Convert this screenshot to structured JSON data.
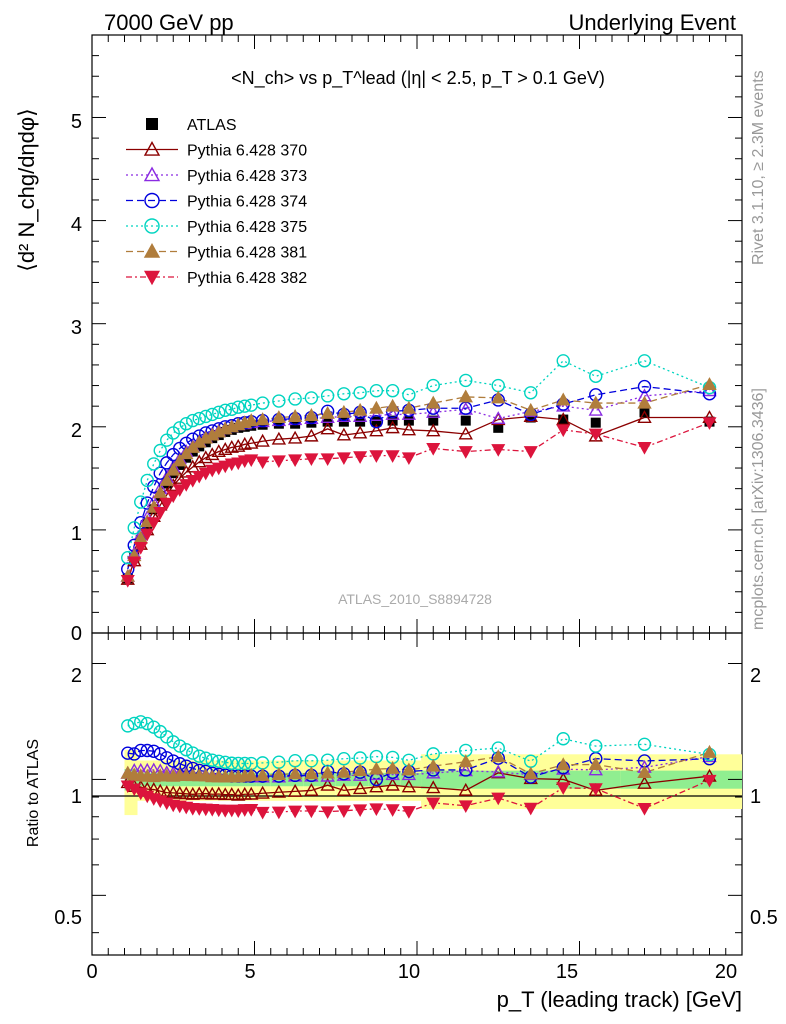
{
  "header": {
    "left": "7000 GeV pp",
    "right": "Underlying Event"
  },
  "side_labels": {
    "rivet": "Rivet 3.1.10, ≥ 2.3M events",
    "mcplots": "mcplots.cern.ch [arXiv:1306.3436]"
  },
  "chart_data": {
    "type": "scatter",
    "title": "<N_ch> vs p_T^lead (|η| < 2.5, p_T > 0.1 GeV)",
    "watermark": "ATLAS_2010_S8894728",
    "xlabel": "p_T (leading track) [GeV]",
    "ylabel_top": "⟨d² N_chg/dηdφ⟩",
    "ylabel_bottom": "Ratio to ATLAS",
    "xlim": [
      0,
      20
    ],
    "ylim_top": [
      0,
      5.8
    ],
    "ylim_bottom_log": [
      0.35,
      2.4
    ],
    "x_ticks": [
      "0",
      "5",
      "10",
      "15",
      "20"
    ],
    "y_ticks_top": [
      "0",
      "1",
      "2",
      "3",
      "4",
      "5"
    ],
    "y_ticks_bottom": [
      "0.5",
      "1",
      "2"
    ],
    "legend_position": "top-left",
    "x": [
      1.1,
      1.3,
      1.5,
      1.7,
      1.9,
      2.1,
      2.3,
      2.5,
      2.7,
      2.9,
      3.1,
      3.3,
      3.5,
      3.7,
      3.9,
      4.1,
      4.3,
      4.5,
      4.7,
      4.9,
      5.25,
      5.75,
      6.25,
      6.75,
      7.25,
      7.75,
      8.25,
      8.75,
      9.25,
      9.75,
      10.5,
      11.5,
      12.5,
      13.5,
      14.5,
      15.5,
      17.0,
      19.0
    ],
    "series": [
      {
        "name": "ATLAS",
        "color": "#000000",
        "marker": "square-filled",
        "line": "none",
        "values": [
          0.53,
          0.73,
          0.9,
          1.06,
          1.2,
          1.33,
          1.45,
          1.55,
          1.63,
          1.7,
          1.76,
          1.81,
          1.85,
          1.89,
          1.92,
          1.95,
          1.97,
          1.99,
          2.0,
          2.01,
          2.02,
          2.03,
          2.03,
          2.04,
          2.05,
          2.05,
          2.05,
          2.05,
          2.06,
          2.06,
          2.06,
          2.06,
          1.99,
          2.09,
          2.07,
          2.04,
          2.14,
          2.05
        ]
      },
      {
        "name": "Pythia 6.428 370",
        "color": "#8b0000",
        "marker": "triangle-open",
        "line": "solid",
        "values": [
          0.52,
          0.7,
          0.86,
          1.0,
          1.13,
          1.24,
          1.34,
          1.43,
          1.5,
          1.56,
          1.61,
          1.66,
          1.7,
          1.73,
          1.76,
          1.78,
          1.8,
          1.81,
          1.83,
          1.84,
          1.86,
          1.88,
          1.89,
          1.91,
          1.98,
          1.92,
          1.94,
          1.96,
          1.99,
          1.97,
          1.96,
          1.93,
          2.07,
          2.1,
          2.07,
          1.91,
          2.09,
          2.09
        ]
      },
      {
        "name": "Pythia 6.428 373",
        "color": "#8a2be2",
        "marker": "triangle-open",
        "line": "dotted",
        "values": [
          0.55,
          0.77,
          0.95,
          1.12,
          1.27,
          1.4,
          1.51,
          1.61,
          1.69,
          1.76,
          1.81,
          1.86,
          1.9,
          1.93,
          1.96,
          1.98,
          2.0,
          2.02,
          2.03,
          2.04,
          2.05,
          2.06,
          2.07,
          2.08,
          2.09,
          2.1,
          2.1,
          2.11,
          2.12,
          2.12,
          2.14,
          2.17,
          2.08,
          2.15,
          2.2,
          2.16,
          2.3,
          2.35
        ]
      },
      {
        "name": "Pythia 6.428 374",
        "color": "#0000dd",
        "marker": "circle-open",
        "line": "dashed",
        "values": [
          0.62,
          0.85,
          1.07,
          1.26,
          1.42,
          1.55,
          1.65,
          1.73,
          1.79,
          1.84,
          1.88,
          1.91,
          1.94,
          1.96,
          1.98,
          2.0,
          2.01,
          2.03,
          2.04,
          2.05,
          2.06,
          2.07,
          2.08,
          2.09,
          2.15,
          2.12,
          2.14,
          2.05,
          2.15,
          2.16,
          2.18,
          2.18,
          2.26,
          2.12,
          2.22,
          2.31,
          2.39,
          2.32
        ]
      },
      {
        "name": "Pythia 6.428 375",
        "color": "#00d4c0",
        "marker": "circle-open",
        "line": "dotted",
        "values": [
          0.73,
          1.02,
          1.27,
          1.48,
          1.64,
          1.77,
          1.87,
          1.94,
          1.99,
          2.03,
          2.06,
          2.08,
          2.1,
          2.12,
          2.14,
          2.16,
          2.17,
          2.19,
          2.2,
          2.21,
          2.23,
          2.25,
          2.27,
          2.28,
          2.3,
          2.32,
          2.33,
          2.35,
          2.35,
          2.31,
          2.4,
          2.45,
          2.4,
          2.33,
          2.64,
          2.49,
          2.64,
          2.38
        ]
      },
      {
        "name": "Pythia 6.428 381",
        "color": "#b07d3c",
        "marker": "triangle-filled",
        "line": "dashed",
        "values": [
          0.55,
          0.75,
          0.92,
          1.08,
          1.22,
          1.36,
          1.48,
          1.58,
          1.67,
          1.74,
          1.8,
          1.85,
          1.89,
          1.92,
          1.95,
          1.98,
          2.0,
          2.02,
          2.04,
          2.06,
          2.07,
          2.09,
          2.1,
          2.11,
          2.13,
          2.14,
          2.16,
          2.18,
          2.2,
          2.18,
          2.23,
          2.29,
          2.28,
          2.16,
          2.26,
          2.23,
          2.23,
          2.41
        ]
      },
      {
        "name": "Pythia 6.428 382",
        "color": "#dc143c",
        "marker": "triangle-down-filled",
        "line": "dashdot",
        "values": [
          0.51,
          0.69,
          0.83,
          0.96,
          1.07,
          1.17,
          1.26,
          1.33,
          1.39,
          1.44,
          1.48,
          1.52,
          1.55,
          1.58,
          1.6,
          1.62,
          1.64,
          1.65,
          1.67,
          1.68,
          1.66,
          1.67,
          1.68,
          1.69,
          1.69,
          1.7,
          1.71,
          1.72,
          1.72,
          1.7,
          1.79,
          1.76,
          1.78,
          1.76,
          1.97,
          1.93,
          1.8,
          2.04
        ]
      }
    ],
    "ratio_band_inner": 0.04,
    "ratio_band_outer": 0.12
  },
  "colors": {
    "band_inner": "#90ee90",
    "band_outer": "#ffff99",
    "axis": "#000000",
    "side_text": "#999999",
    "watermark": "#aaaaaa"
  }
}
